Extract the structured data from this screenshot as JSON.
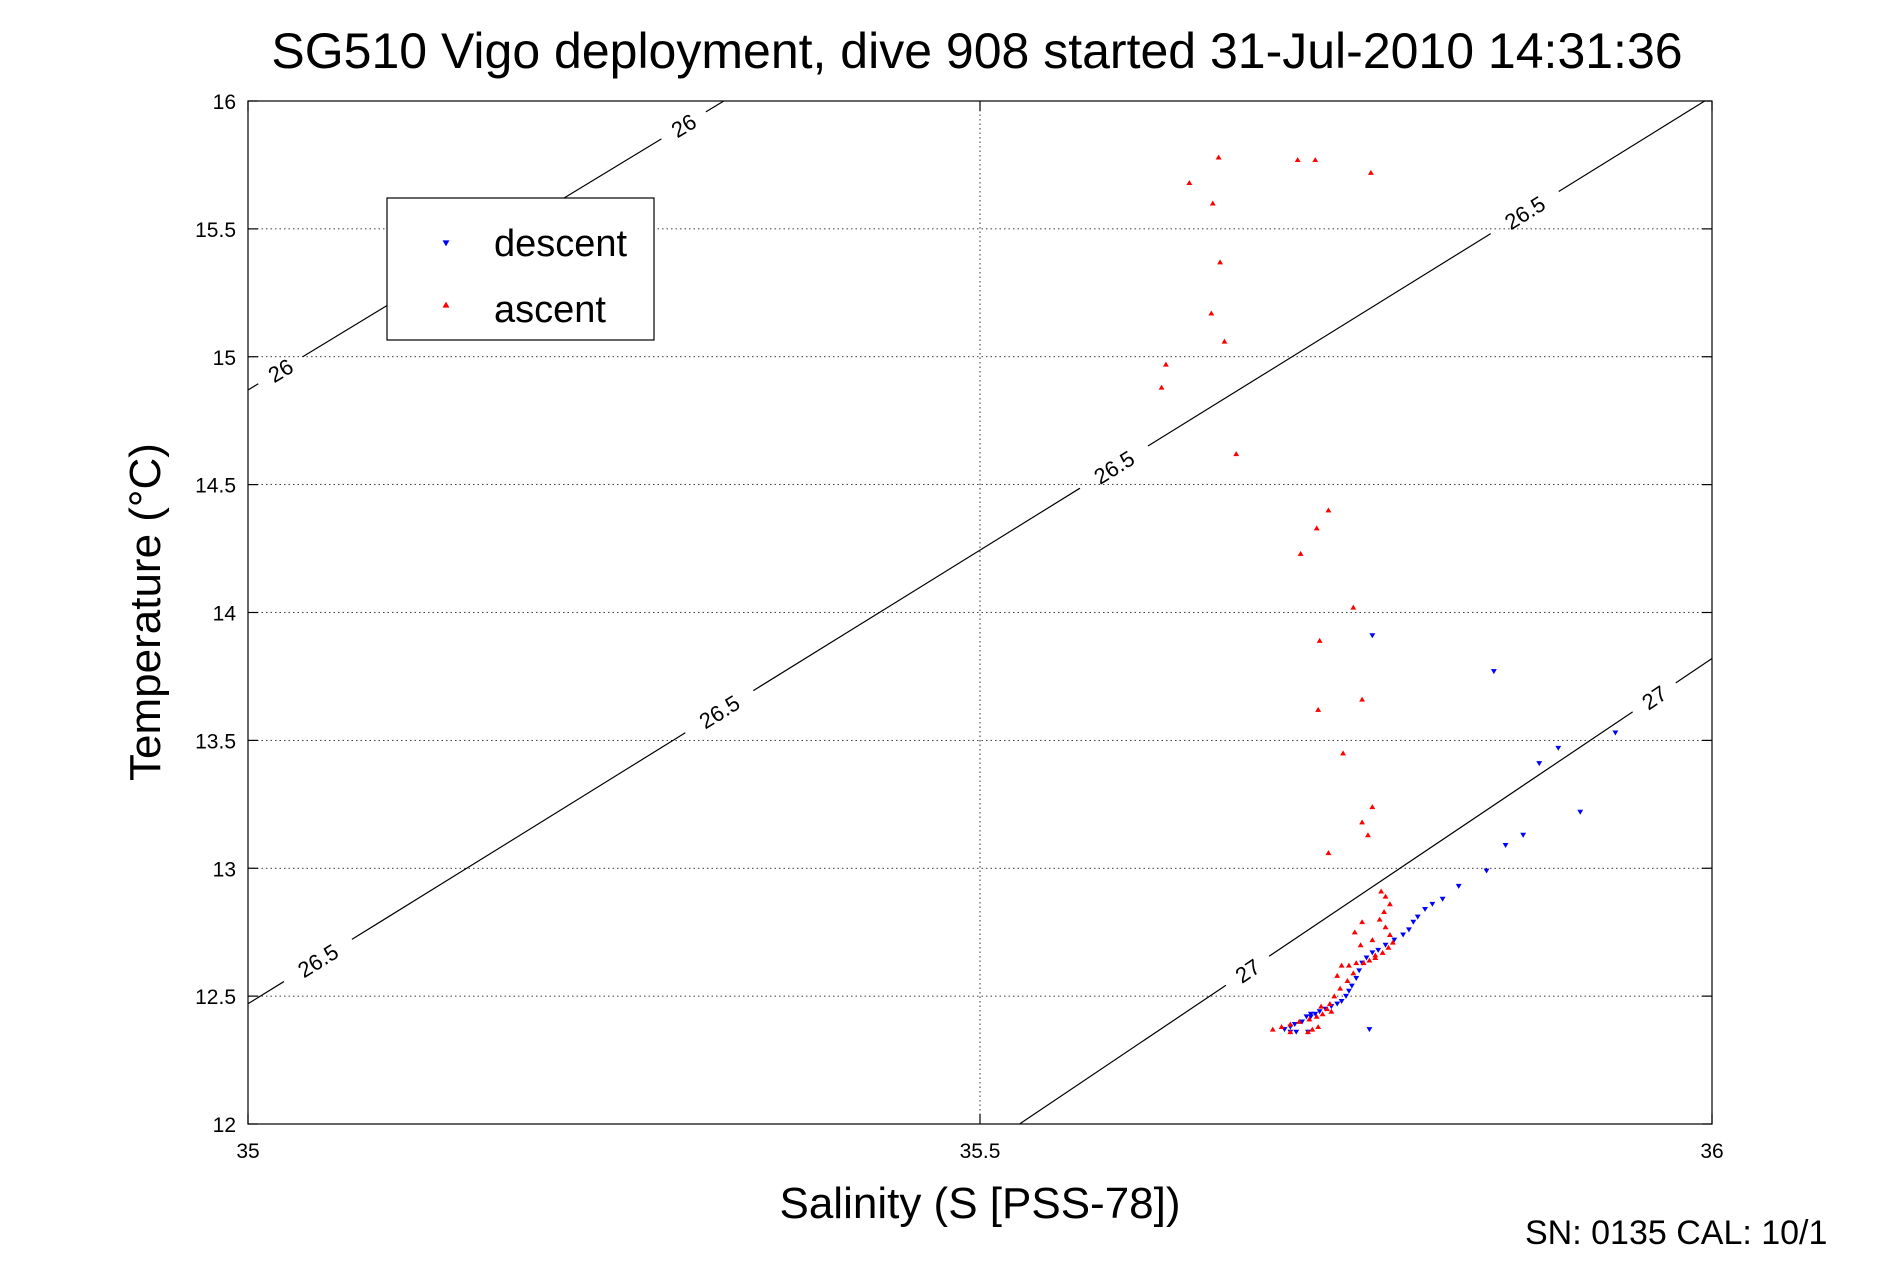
{
  "chart_data": {
    "type": "scatter",
    "title": "SG510 Vigo deployment, dive 908 started 31-Jul-2010 14:31:36",
    "xlabel": "Salinity (S [PSS-78])",
    "ylabel": "Temperature (°C)",
    "xlim": [
      35,
      36
    ],
    "ylim": [
      12,
      16
    ],
    "xticks": [
      "35",
      "35.5",
      "36"
    ],
    "yticks": [
      "12",
      "12.5",
      "13",
      "13.5",
      "14",
      "14.5",
      "15",
      "15.5",
      "16"
    ],
    "grid": true,
    "legend_position": "top-left",
    "series": [
      {
        "name": "descent",
        "color": "#0000ff",
        "marker": "triangle-down",
        "points": [
          [
            35.768,
            13.91
          ],
          [
            35.851,
            13.77
          ],
          [
            35.934,
            13.53
          ],
          [
            35.895,
            13.47
          ],
          [
            35.882,
            13.41
          ],
          [
            35.91,
            13.22
          ],
          [
            35.871,
            13.13
          ],
          [
            35.859,
            13.09
          ],
          [
            35.846,
            12.99
          ],
          [
            35.827,
            12.93
          ],
          [
            35.816,
            12.88
          ],
          [
            35.809,
            12.86
          ],
          [
            35.804,
            12.84
          ],
          [
            35.799,
            12.81
          ],
          [
            35.796,
            12.79
          ],
          [
            35.793,
            12.76
          ],
          [
            35.789,
            12.74
          ],
          [
            35.783,
            12.72
          ],
          [
            35.777,
            12.7
          ],
          [
            35.772,
            12.68
          ],
          [
            35.768,
            12.67
          ],
          [
            35.764,
            12.65
          ],
          [
            35.761,
            12.63
          ],
          [
            35.759,
            12.6
          ],
          [
            35.757,
            12.57
          ],
          [
            35.754,
            12.54
          ],
          [
            35.752,
            12.52
          ],
          [
            35.75,
            12.5
          ],
          [
            35.747,
            12.48
          ],
          [
            35.744,
            12.47
          ],
          [
            35.74,
            12.46
          ],
          [
            35.736,
            12.45
          ],
          [
            35.732,
            12.44
          ],
          [
            35.729,
            12.43
          ],
          [
            35.726,
            12.42
          ],
          [
            35.723,
            12.42
          ],
          [
            35.72,
            12.4
          ],
          [
            35.715,
            12.39
          ],
          [
            35.712,
            12.38
          ],
          [
            35.708,
            12.37
          ],
          [
            35.724,
            12.36
          ],
          [
            35.716,
            12.36
          ],
          [
            35.712,
            12.36
          ],
          [
            35.766,
            12.37
          ],
          [
            35.726,
            12.43
          ]
        ]
      },
      {
        "name": "ascent",
        "color": "#ff0000",
        "marker": "triangle-up",
        "points": [
          [
            35.663,
            15.78
          ],
          [
            35.717,
            15.77
          ],
          [
            35.729,
            15.77
          ],
          [
            35.767,
            15.72
          ],
          [
            35.643,
            15.68
          ],
          [
            35.659,
            15.6
          ],
          [
            35.664,
            15.37
          ],
          [
            35.658,
            15.17
          ],
          [
            35.667,
            15.06
          ],
          [
            35.627,
            14.97
          ],
          [
            35.624,
            14.88
          ],
          [
            35.675,
            14.62
          ],
          [
            35.738,
            14.4
          ],
          [
            35.73,
            14.33
          ],
          [
            35.719,
            14.23
          ],
          [
            35.755,
            14.02
          ],
          [
            35.732,
            13.89
          ],
          [
            35.761,
            13.66
          ],
          [
            35.731,
            13.62
          ],
          [
            35.748,
            13.45
          ],
          [
            35.768,
            13.24
          ],
          [
            35.761,
            13.18
          ],
          [
            35.765,
            13.13
          ],
          [
            35.738,
            13.06
          ],
          [
            35.774,
            12.91
          ],
          [
            35.777,
            12.89
          ],
          [
            35.78,
            12.86
          ],
          [
            35.776,
            12.83
          ],
          [
            35.773,
            12.8
          ],
          [
            35.777,
            12.77
          ],
          [
            35.78,
            12.74
          ],
          [
            35.782,
            12.71
          ],
          [
            35.779,
            12.69
          ],
          [
            35.775,
            12.67
          ],
          [
            35.77,
            12.65
          ],
          [
            35.766,
            12.64
          ],
          [
            35.762,
            12.63
          ],
          [
            35.757,
            12.63
          ],
          [
            35.752,
            12.62
          ],
          [
            35.747,
            12.62
          ],
          [
            35.77,
            12.66
          ],
          [
            35.768,
            12.72
          ],
          [
            35.76,
            12.7
          ],
          [
            35.756,
            12.75
          ],
          [
            35.761,
            12.79
          ],
          [
            35.755,
            12.59
          ],
          [
            35.751,
            12.56
          ],
          [
            35.746,
            12.53
          ],
          [
            35.742,
            12.5
          ],
          [
            35.739,
            12.47
          ],
          [
            35.737,
            12.45
          ],
          [
            35.734,
            12.43
          ],
          [
            35.73,
            12.42
          ],
          [
            35.725,
            12.41
          ],
          [
            35.718,
            12.4
          ],
          [
            35.712,
            12.39
          ],
          [
            35.706,
            12.38
          ],
          [
            35.7,
            12.37
          ],
          [
            35.712,
            12.36
          ],
          [
            35.724,
            12.36
          ],
          [
            35.731,
            12.38
          ],
          [
            35.74,
            12.44
          ],
          [
            35.744,
            12.58
          ],
          [
            35.733,
            12.46
          ],
          [
            35.727,
            12.37
          ]
        ]
      }
    ],
    "contours": [
      {
        "label": "26",
        "p1": [
          35.0,
          14.87
        ],
        "p2": [
          35.325,
          16.0
        ],
        "label_positions": [
          [
            35.024,
            14.93
          ],
          [
            35.297,
            15.91
          ]
        ]
      },
      {
        "label": "26.5",
        "p1": [
          35.0,
          12.47
        ],
        "p2": [
          35.995,
          16.0
        ],
        "label_positions": [
          [
            35.052,
            12.6
          ],
          [
            35.32,
            13.63
          ],
          [
            35.587,
            14.61
          ],
          [
            35.866,
            15.62
          ]
        ]
      },
      {
        "label": "27",
        "p1": [
          35.527,
          12.0
        ],
        "p2": [
          36.0,
          13.82
        ],
        "label_positions": [
          [
            35.685,
            12.58
          ],
          [
            35.965,
            13.63
          ]
        ]
      }
    ]
  },
  "footer": {
    "serial": "SN: 0135  CAL: 10/1"
  }
}
